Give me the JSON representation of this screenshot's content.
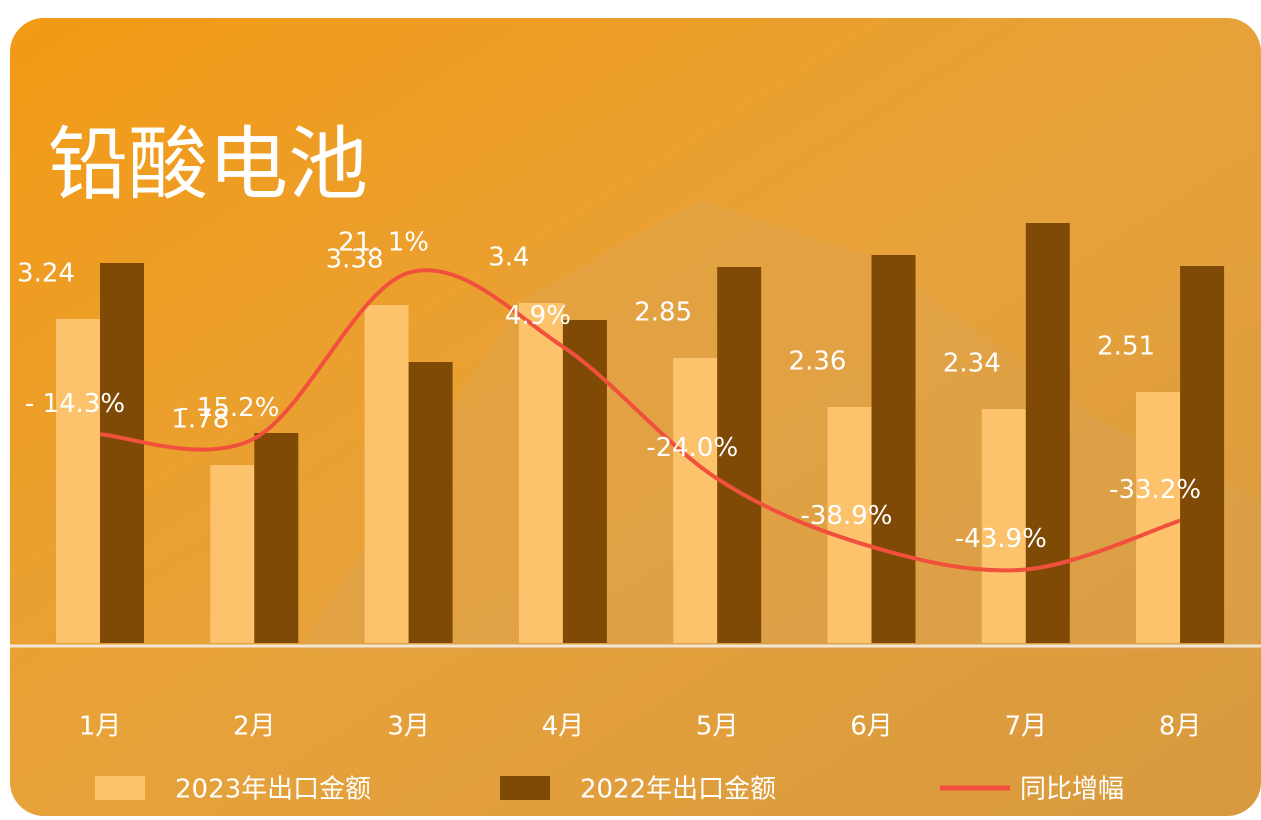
{
  "chart_data": {
    "type": "bar-line",
    "title": "铅酸电池",
    "categories": [
      "1月",
      "2月",
      "3月",
      "4月",
      "5月",
      "6月",
      "7月",
      "8月"
    ],
    "series": [
      {
        "name": "2023年出口金额",
        "color": "#fcc36c",
        "values": [
          3.24,
          1.78,
          3.38,
          3.4,
          2.85,
          2.36,
          2.34,
          2.51
        ]
      },
      {
        "name": "2022年出口金额",
        "color": "#7f4a05",
        "values": [
          3.8,
          2.1,
          2.81,
          3.23,
          3.76,
          3.88,
          4.2,
          3.77
        ]
      },
      {
        "name": "同比增幅",
        "color": "#f0503c",
        "type": "line",
        "axis": "y2",
        "values": [
          -14.3,
          -15.2,
          21.1,
          4.9,
          -24.0,
          -38.9,
          -43.9,
          -33.2
        ],
        "value_labels": [
          "- 14.3%",
          "- 15.2%",
          "21. 1%",
          "4.9%",
          "-24.0%",
          "-38.9%",
          "-43.9%",
          "-33.2%"
        ]
      }
    ],
    "ylim": [
      0,
      4.2
    ],
    "y2lim": [
      -60,
      32
    ]
  }
}
